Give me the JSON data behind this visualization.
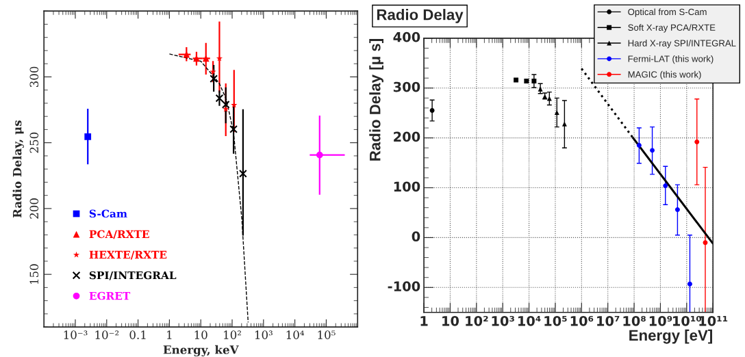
{
  "chart_data": [
    {
      "type": "scatter",
      "xlabel": "Energy, keV",
      "ylabel": "Radio Delay, μs",
      "log": "x",
      "xlim": [
        0.0001,
        1000000
      ],
      "ylim": [
        110,
        350
      ],
      "xticks": [
        {
          "value": 0.001,
          "label": "10⁻³"
        },
        {
          "value": 0.01,
          "label": "10⁻²"
        },
        0.1,
        1,
        10,
        {
          "value": 100,
          "label": "10²"
        },
        {
          "value": 1000,
          "label": "10³"
        },
        {
          "value": 10000,
          "label": "10⁴"
        },
        {
          "value": 100000,
          "label": "10⁵"
        }
      ],
      "yticks": [
        150,
        200,
        250,
        300
      ],
      "grid": false,
      "legend": "bottom left",
      "series": [
        {
          "name": "S-Cam",
          "type": "scatter",
          "color": "#0000ff",
          "marker": "square",
          "x": [
            0.0025
          ],
          "values": [
            254.6
          ],
          "errors": [
            [
              233.6,
              275.8
            ]
          ]
        },
        {
          "name": "PCA/RXTE",
          "type": "scatter",
          "color": "#ff0000",
          "marker": "triangle",
          "x": [
            3.5,
            7.3,
            14.6
          ],
          "values": [
            317,
            314,
            314
          ],
          "errors": [
            [
              311.9,
              322.6
            ],
            [
              308.7,
              319
            ],
            [
              301.8,
              325.8
            ]
          ],
          "xerrors": [
            [
              1.96,
              4.75
            ],
            [
              5.6,
              11.3
            ],
            [
              11.3,
              19.7
            ]
          ]
        },
        {
          "name": "HEXTE/RXTE",
          "type": "scatter",
          "color": "#ff0000",
          "marker": "star",
          "x": [
            24.6,
            39.3,
            62.7,
            115
          ],
          "values": [
            303.9,
            314,
            275.4,
            278.6
          ],
          "errors": [
            [
              296,
              312
            ],
            [
              288,
              342
            ],
            [
              255,
              295
            ],
            [
              258,
              305.3
            ]
          ]
        },
        {
          "name": "SPI/INTEGRAL",
          "type": "scatter",
          "color": "#000000",
          "marker": "cross",
          "x": [
            25.9,
            39.3,
            62.7,
            111,
            222
          ],
          "values": [
            298.6,
            283.8,
            279,
            260.3,
            226.5
          ],
          "errors": [
            [
              288.8,
              309
            ],
            [
              278,
              289.7
            ],
            [
              264.8,
              292
            ],
            [
              241.6,
              279
            ],
            [
              179.4,
              275.4
            ]
          ]
        },
        {
          "name": "EGRET",
          "type": "scatter",
          "color": "#ff00ff",
          "marker": "circle",
          "x": [
            61600
          ],
          "values": [
            240.7
          ],
          "errors": [
            [
              210.5,
              270.6
            ]
          ],
          "xerrors": [
            [
              29800,
              390000
            ]
          ]
        },
        {
          "type": "line",
          "color": "#000000",
          "line_style": "dashed",
          "marker": "none",
          "x": [
            1,
            10,
            25.7,
            39,
            66,
            111,
            204,
            324
          ],
          "values": [
            317.4,
            311.9,
            300.4,
            295,
            282.6,
            257.6,
            191.8,
            113.5
          ]
        }
      ]
    },
    {
      "type": "scatter",
      "title": "Radio Delay",
      "xlabel": "Energy [eV]",
      "ylabel": "Radio Delay [μ s]",
      "log": "x",
      "xlim": [
        1,
        100000000000
      ],
      "ylim": [
        -150,
        400
      ],
      "xticks": [
        1,
        10,
        {
          "value": 100,
          "label": "10²"
        },
        {
          "value": 1000,
          "label": "10³"
        },
        {
          "value": 10000,
          "label": "10⁴"
        },
        {
          "value": 100000,
          "label": "10⁵"
        },
        {
          "value": 1000000,
          "label": "10⁶"
        },
        {
          "value": 10000000,
          "label": "10⁷"
        },
        {
          "value": 100000000,
          "label": "10⁸"
        },
        {
          "value": 1000000000,
          "label": "10⁹"
        },
        {
          "value": 10000000000,
          "label": "10¹⁰"
        },
        {
          "value": 100000000000,
          "label": "10¹¹"
        }
      ],
      "yticks": [
        -100,
        0,
        100,
        200,
        300,
        400
      ],
      "grid": true,
      "legend": "top right",
      "series": [
        {
          "name": "Optical from S-Cam",
          "type": "scatter",
          "color": "#000000",
          "marker": "circle",
          "x": [
            2.06
          ],
          "values": [
            255
          ],
          "errors": [
            [
              234,
              276
            ]
          ]
        },
        {
          "name": "Soft X-ray PCA/RXTE",
          "type": "scatter",
          "color": "#000000",
          "marker": "square",
          "x": [
            3200,
            8000,
            15500
          ],
          "values": [
            316,
            314,
            314
          ],
          "errors": [
            null,
            null,
            [
              301,
              327
            ]
          ]
        },
        {
          "name": "Hard X-ray SPI/INTEGRAL",
          "type": "scatter",
          "color": "#000000",
          "marker": "triangle",
          "x": [
            27000,
            40000,
            59600,
            115000,
            224000
          ],
          "values": [
            298,
            283,
            279,
            251,
            228
          ],
          "errors": [
            [
              289,
              309
            ],
            [
              278,
              290
            ],
            [
              266,
              292
            ],
            [
              222,
              280
            ],
            [
              180,
              275
            ]
          ]
        },
        {
          "name": "Fermi-LAT (this work)",
          "type": "scatter",
          "color": "#0000ff",
          "marker": "circle",
          "x": [
            155000000,
            490000000,
            1550000000,
            4470000000,
            13200000000
          ],
          "values": [
            185,
            175,
            104,
            56,
            -93
          ],
          "errors": [
            [
              149,
              220
            ],
            [
              127,
              222
            ],
            [
              66,
              143
            ],
            [
              5,
              106
            ],
            [
              -150,
              5
            ]
          ]
        },
        {
          "name": "MAGIC (this work)",
          "type": "scatter",
          "color": "#ff0000",
          "marker": "circle",
          "x": [
            24500000000,
            51000000000
          ],
          "values": [
            192,
            -10
          ],
          "errors": [
            [
              106,
              278
            ],
            [
              -150,
              141
            ]
          ]
        },
        {
          "type": "line",
          "color": "#000000",
          "line_style": "dotted",
          "marker": "none",
          "x": [
            1000000,
            91000000
          ],
          "values": [
            339,
            200
          ]
        },
        {
          "type": "line",
          "color": "#000000",
          "line_style": "solid",
          "marker": "none",
          "x": [
            91000000,
            100000000000
          ],
          "values": [
            200,
            -12
          ]
        }
      ]
    }
  ]
}
